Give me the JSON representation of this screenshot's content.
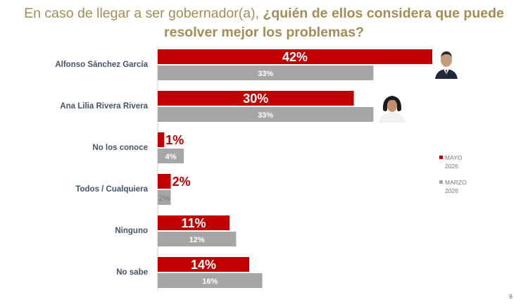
{
  "title": {
    "part1": "En caso de llegar a ser gobernador(a), ",
    "part2": "¿quién de ellos considera que puede",
    "line2": "resolver mejor los problemas?"
  },
  "colors": {
    "mayo": "#c00000",
    "marzo": "#a6a6a6",
    "title": "#a38d55",
    "category": "#44546a"
  },
  "legend": [
    {
      "label": "MAYO",
      "sublabel": "2026",
      "color": "#c00000"
    },
    {
      "label": "MARZO",
      "sublabel": "2026",
      "color": "#a6a6a6"
    }
  ],
  "page_number": "6",
  "chart_data": {
    "type": "bar",
    "orientation": "horizontal",
    "categories": [
      "Alfonso Sánchez García",
      "Ana Lilia Rivera Rivera",
      "No los conoce",
      "Todos / Cualquiera",
      "Ninguno",
      "No sabe"
    ],
    "series": [
      {
        "name": "MAYO 2026",
        "values": [
          42,
          30,
          1,
          2,
          11,
          14
        ],
        "labels": [
          "42%",
          "30%",
          "1%",
          "2%",
          "11%",
          "14%"
        ]
      },
      {
        "name": "MARZO 2026",
        "values": [
          33,
          33,
          4,
          2,
          12,
          16
        ],
        "labels": [
          "33%",
          "33%",
          "4%",
          "2%",
          "12%",
          "16%"
        ]
      }
    ],
    "unit": "%",
    "xlim": [
      0,
      42
    ],
    "legend_position": "right",
    "grid": false
  }
}
